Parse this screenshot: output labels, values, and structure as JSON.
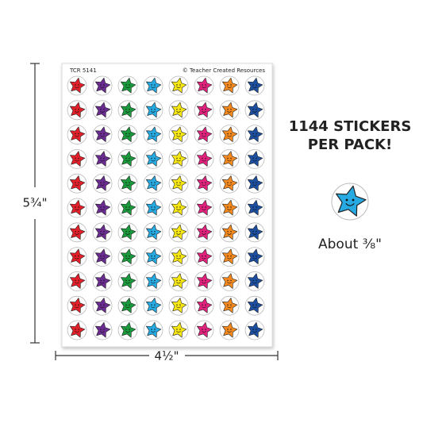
{
  "sheet": {
    "code": "TCR 5141",
    "publisher": "© Teacher Created Resources"
  },
  "dimensions": {
    "height": "5¾\"",
    "width": "4½\""
  },
  "info": {
    "count_line": "1144 STICKERS",
    "pack_line": "PER PACK!",
    "size": "About ⅜\""
  }
}
